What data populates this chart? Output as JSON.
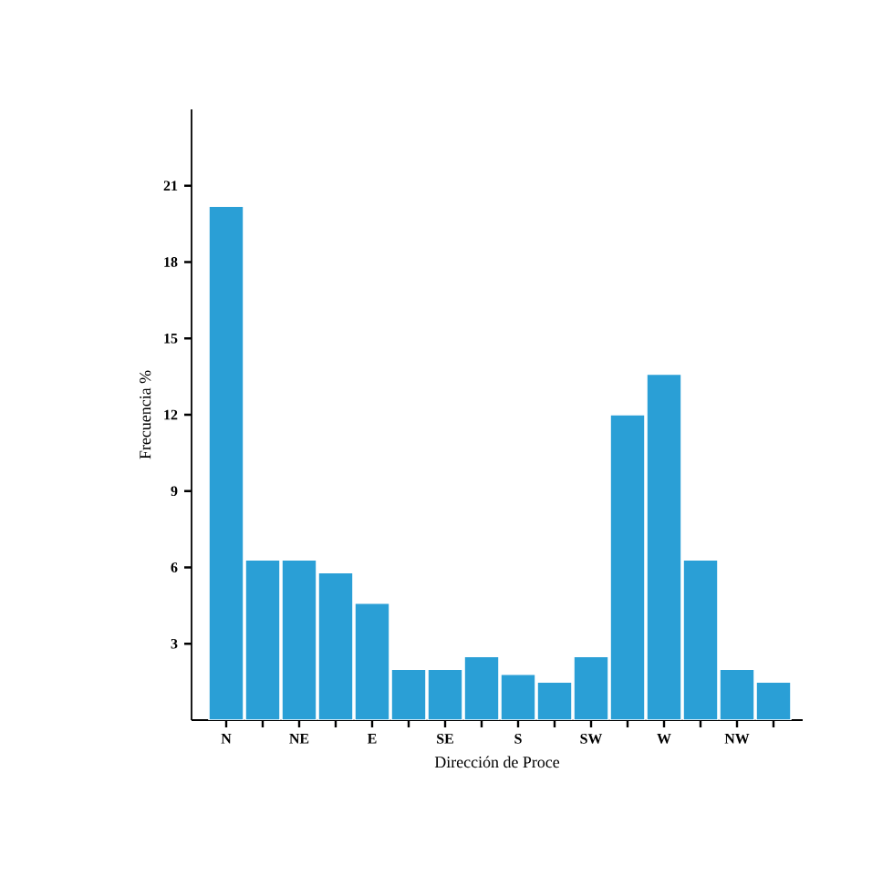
{
  "chart_data": {
    "type": "bar",
    "xlabel": "Dirección de Proce",
    "ylabel": "Frecuencia %",
    "categories": [
      "N",
      null,
      "NE",
      null,
      "E",
      null,
      "SE",
      null,
      "S",
      null,
      "SW",
      null,
      "W",
      null,
      "NW",
      null
    ],
    "values": [
      20.2,
      6.3,
      6.3,
      5.8,
      4.6,
      2.0,
      2.0,
      2.5,
      1.8,
      1.5,
      2.5,
      12.0,
      13.6,
      6.3,
      2.0,
      1.5
    ],
    "color": "#2a9fd6",
    "ylim": [
      0,
      24
    ],
    "yticks": [
      3,
      6,
      9,
      12,
      15,
      18,
      21
    ],
    "grid": false
  }
}
